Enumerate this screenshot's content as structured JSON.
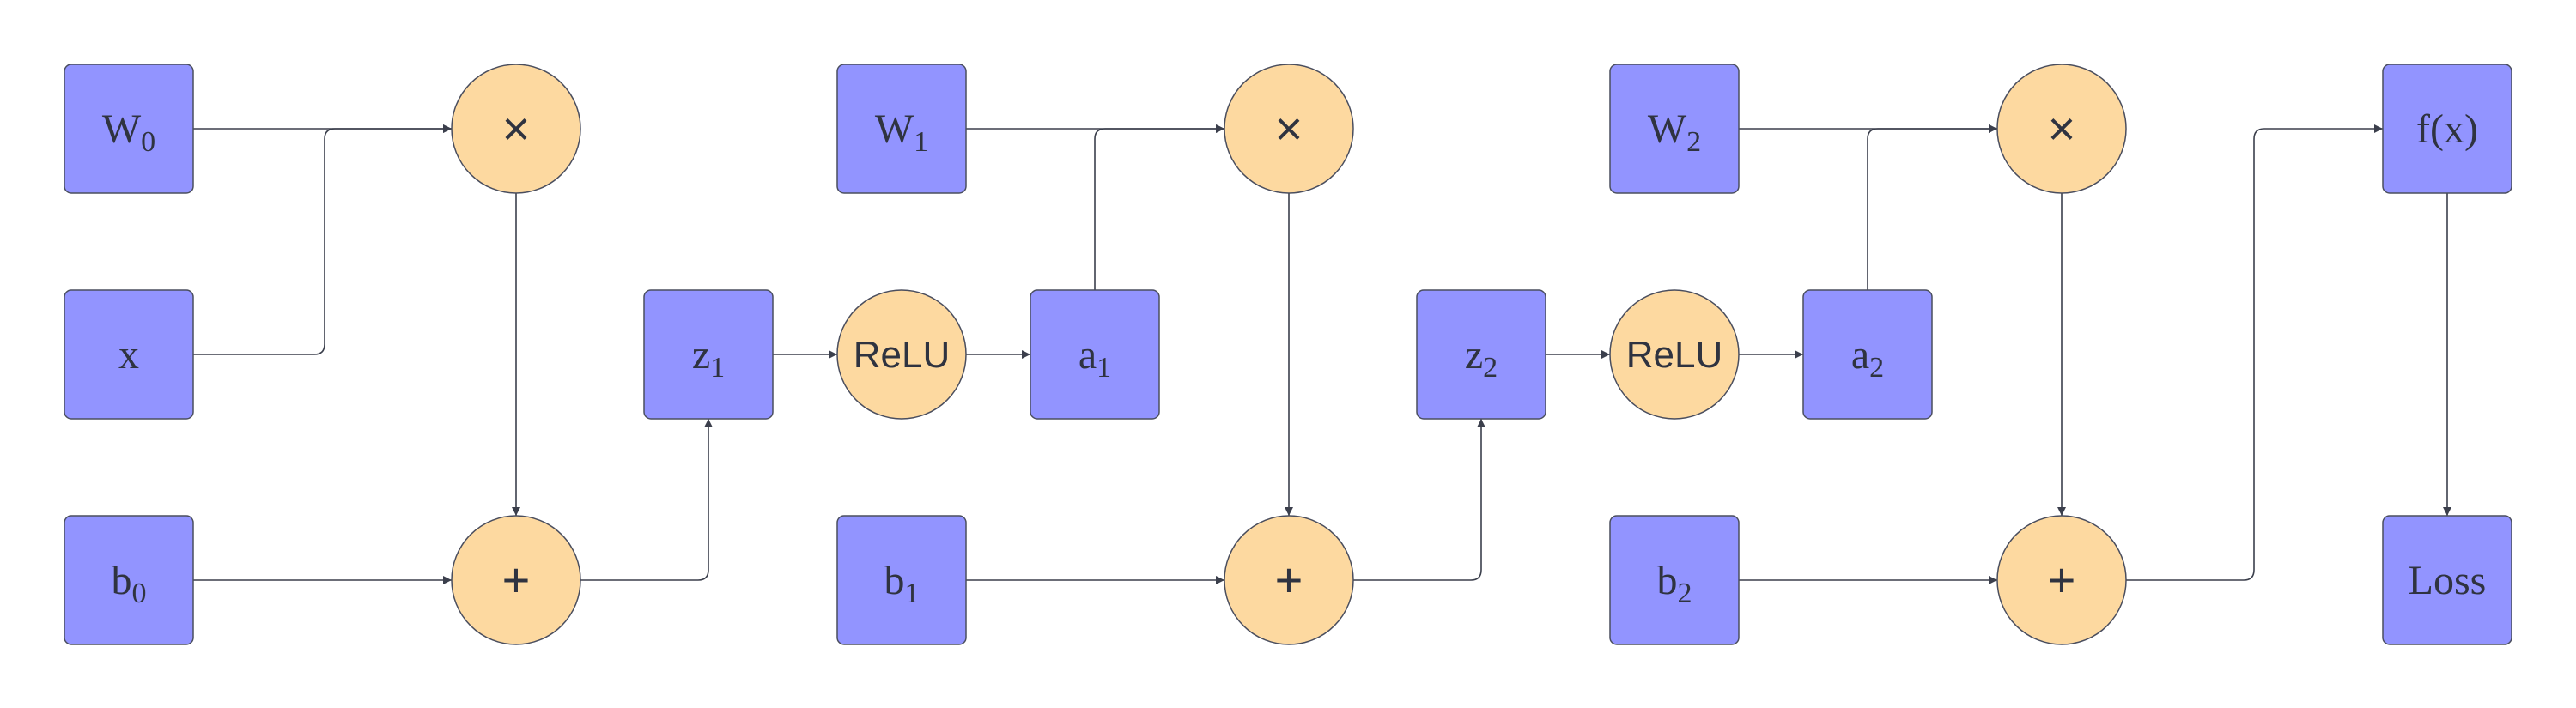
{
  "colors": {
    "variable_fill": "#9294ff",
    "operation_fill": "#fdd9a0",
    "stroke": "#4a4e5e",
    "edge": "#3b3f4c",
    "text": "#2f3340"
  },
  "nodes": {
    "w0": {
      "kind": "variable",
      "label": "W",
      "sub": "0"
    },
    "x": {
      "kind": "variable",
      "label": "x",
      "sub": ""
    },
    "b0": {
      "kind": "variable",
      "label": "b",
      "sub": "0"
    },
    "mul0": {
      "kind": "operation",
      "label": "×"
    },
    "add0": {
      "kind": "operation",
      "label": "+"
    },
    "z1": {
      "kind": "variable",
      "label": "z",
      "sub": "1"
    },
    "relu1": {
      "kind": "operation",
      "label": "ReLU"
    },
    "a1": {
      "kind": "variable",
      "label": "a",
      "sub": "1"
    },
    "w1": {
      "kind": "variable",
      "label": "W",
      "sub": "1"
    },
    "b1": {
      "kind": "variable",
      "label": "b",
      "sub": "1"
    },
    "mul1": {
      "kind": "operation",
      "label": "×"
    },
    "add1": {
      "kind": "operation",
      "label": "+"
    },
    "z2": {
      "kind": "variable",
      "label": "z",
      "sub": "2"
    },
    "relu2": {
      "kind": "operation",
      "label": "ReLU"
    },
    "a2": {
      "kind": "variable",
      "label": "a",
      "sub": "2"
    },
    "w2": {
      "kind": "variable",
      "label": "W",
      "sub": "2"
    },
    "b2": {
      "kind": "variable",
      "label": "b",
      "sub": "2"
    },
    "mul2": {
      "kind": "operation",
      "label": "×"
    },
    "add2": {
      "kind": "operation",
      "label": "+"
    },
    "fx": {
      "kind": "variable",
      "label": "f(x)",
      "sub": ""
    },
    "loss": {
      "kind": "variable",
      "label": "Loss",
      "sub": ""
    }
  },
  "edges": [
    [
      "w0",
      "mul0"
    ],
    [
      "x",
      "mul0"
    ],
    [
      "mul0",
      "add0"
    ],
    [
      "b0",
      "add0"
    ],
    [
      "add0",
      "z1"
    ],
    [
      "z1",
      "relu1"
    ],
    [
      "relu1",
      "a1"
    ],
    [
      "w1",
      "mul1"
    ],
    [
      "a1",
      "mul1"
    ],
    [
      "mul1",
      "add1"
    ],
    [
      "b1",
      "add1"
    ],
    [
      "add1",
      "z2"
    ],
    [
      "z2",
      "relu2"
    ],
    [
      "relu2",
      "a2"
    ],
    [
      "w2",
      "mul2"
    ],
    [
      "a2",
      "mul2"
    ],
    [
      "mul2",
      "add2"
    ],
    [
      "b2",
      "add2"
    ],
    [
      "add2",
      "fx"
    ],
    [
      "fx",
      "loss"
    ]
  ]
}
